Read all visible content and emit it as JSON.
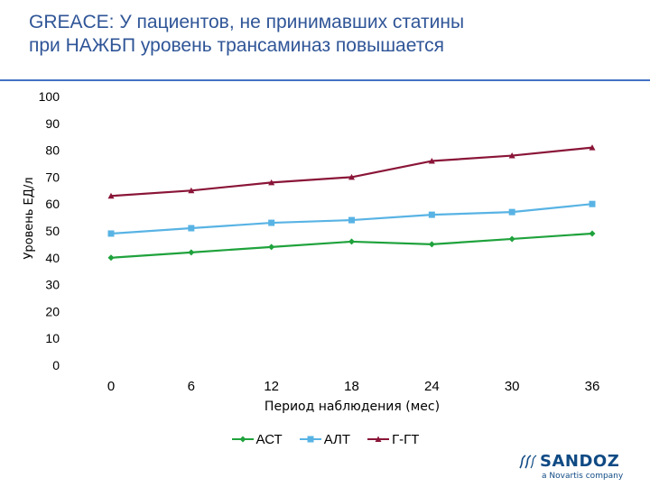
{
  "title": {
    "line1": "GREACE: У пациентов, не принимавших статины",
    "line2": "при НАЖБП уровень трансаминаз повышается"
  },
  "chart_data": {
    "type": "line",
    "x": [
      0,
      6,
      12,
      18,
      24,
      30,
      36
    ],
    "categories": [
      "0",
      "6",
      "12",
      "18",
      "24",
      "30",
      "36"
    ],
    "series": [
      {
        "name": "АСТ",
        "values": [
          40,
          42,
          44,
          46,
          45,
          47,
          49
        ],
        "color": "#1fa23c",
        "marker": "diamond"
      },
      {
        "name": "АЛТ",
        "values": [
          49,
          51,
          53,
          54,
          56,
          57,
          60
        ],
        "color": "#58b3e4",
        "marker": "square"
      },
      {
        "name": "Г-ГТ",
        "values": [
          63,
          65,
          68,
          70,
          76,
          78,
          81
        ],
        "color": "#8a1538",
        "marker": "triangle"
      }
    ],
    "xlabel": "Период наблюдения (мес)",
    "ylabel": "Уровень ЕД/л",
    "ylim": [
      0,
      100
    ],
    "yticks": [
      "0",
      "10",
      "20",
      "30",
      "40",
      "50",
      "60",
      "70",
      "80",
      "90",
      "100"
    ],
    "grid": false,
    "legend_position": "bottom"
  },
  "logo": {
    "brand": "SANDOZ",
    "tagline": "a Novartis company"
  }
}
